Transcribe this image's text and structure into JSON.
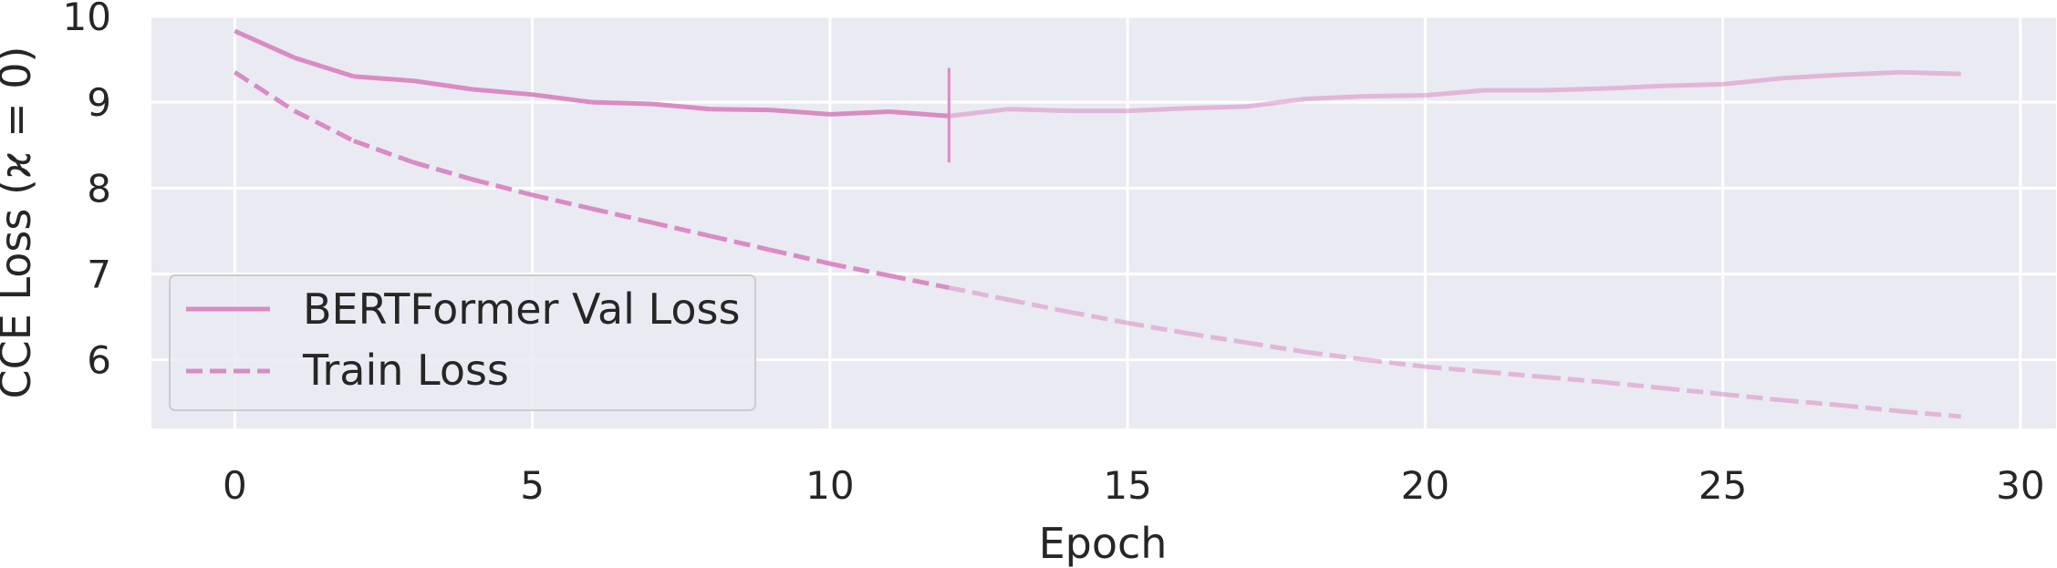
{
  "chart_data": {
    "type": "line",
    "xlabel": "Epoch",
    "ylabel": "CCE Loss (ϰ = 0)",
    "xlim": [
      -1.4,
      30.6
    ],
    "ylim": [
      5.2,
      10.0
    ],
    "x_ticks": [
      0,
      5,
      10,
      15,
      20,
      25,
      30
    ],
    "y_ticks": [
      6,
      7,
      8,
      9,
      10
    ],
    "grid": true,
    "legend_position": "lower-left",
    "colors": {
      "line": "#da8bc3",
      "background": "#eaeaf2",
      "grid": "#ffffff",
      "vline": "#da8bc3"
    },
    "highlight_epoch": 12,
    "highlight_range": [
      8.3,
      9.4
    ],
    "series": [
      {
        "name": "BERTFormer Val Loss",
        "style": "solid",
        "x": [
          0,
          1,
          2,
          3,
          4,
          5,
          6,
          7,
          8,
          9,
          10,
          11,
          12,
          13,
          14,
          15,
          16,
          17,
          18,
          19,
          20,
          21,
          22,
          23,
          24,
          25,
          26,
          27,
          28,
          29
        ],
        "y": [
          9.83,
          9.52,
          9.3,
          9.25,
          9.15,
          9.09,
          9.0,
          8.98,
          8.92,
          8.91,
          8.86,
          8.89,
          8.84,
          8.92,
          8.9,
          8.9,
          8.93,
          8.95,
          9.04,
          9.07,
          9.08,
          9.14,
          9.14,
          9.16,
          9.19,
          9.21,
          9.28,
          9.32,
          9.35,
          9.33
        ]
      },
      {
        "name": "Train Loss",
        "style": "dashed",
        "x": [
          0,
          1,
          2,
          3,
          4,
          5,
          6,
          7,
          8,
          9,
          10,
          11,
          12,
          13,
          14,
          15,
          16,
          17,
          18,
          19,
          20,
          21,
          22,
          23,
          24,
          25,
          26,
          27,
          28,
          29
        ],
        "y": [
          9.35,
          8.9,
          8.55,
          8.3,
          8.1,
          7.92,
          7.76,
          7.6,
          7.44,
          7.28,
          7.12,
          6.98,
          6.84,
          6.7,
          6.56,
          6.43,
          6.31,
          6.2,
          6.09,
          6.0,
          5.92,
          5.86,
          5.8,
          5.74,
          5.67,
          5.6,
          5.53,
          5.47,
          5.4,
          5.34
        ]
      }
    ]
  }
}
